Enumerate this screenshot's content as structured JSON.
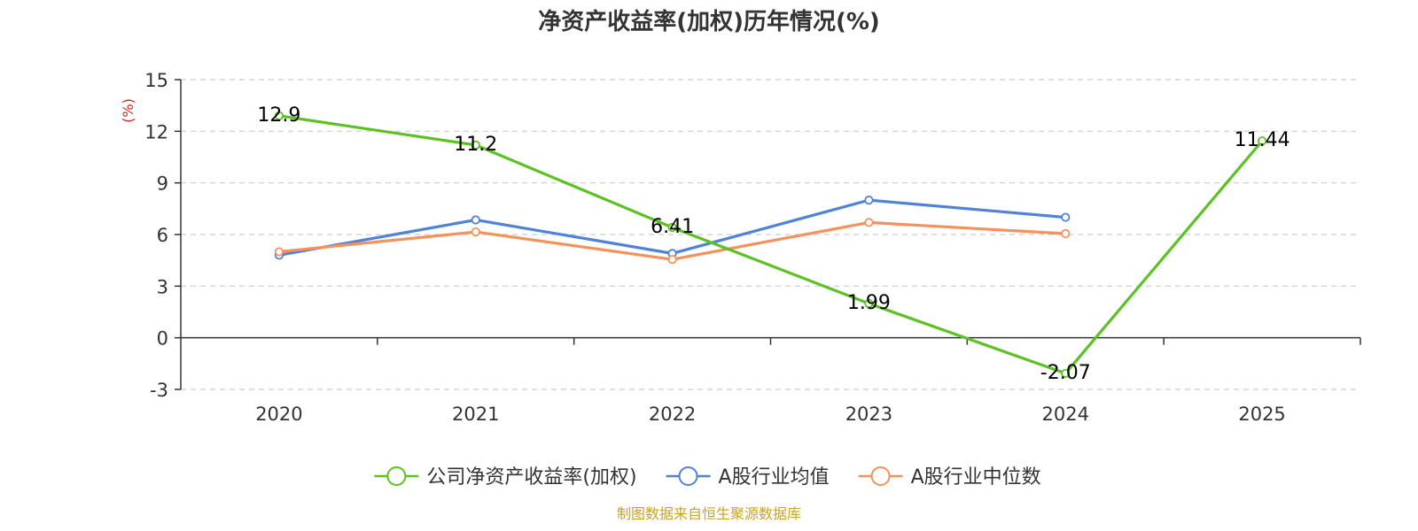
{
  "chart_data": {
    "type": "line",
    "title": "净资产收益率(加权)历年情况(%)",
    "ylabel": "(%)",
    "ylabel_color": "#e0201b",
    "categories": [
      "2020",
      "2021",
      "2022",
      "2023",
      "2024",
      "2025"
    ],
    "ylim": [
      -3,
      15
    ],
    "yticks": [
      "-3",
      "0",
      "3",
      "6",
      "9",
      "12",
      "15"
    ],
    "grid": true,
    "legend_position": "bottom",
    "series": [
      {
        "name": "公司净资产收益率(加权)",
        "color": "#5cc223",
        "values": [
          12.9,
          11.2,
          6.41,
          1.99,
          -2.07,
          11.44
        ],
        "labels": [
          "12.9",
          "11.2",
          "6.41",
          "1.99",
          "-2.07",
          "11.44"
        ]
      },
      {
        "name": "A股行业均值",
        "color": "#4f82d9",
        "values": [
          4.8,
          6.85,
          4.9,
          8.0,
          7.0,
          null
        ]
      },
      {
        "name": "A股行业中位数",
        "color": "#f5915a",
        "values": [
          5.0,
          6.15,
          4.55,
          6.7,
          6.05,
          null
        ]
      }
    ]
  },
  "source": {
    "text": "制图数据来自恒生聚源数据库",
    "color": "#c9a227"
  }
}
